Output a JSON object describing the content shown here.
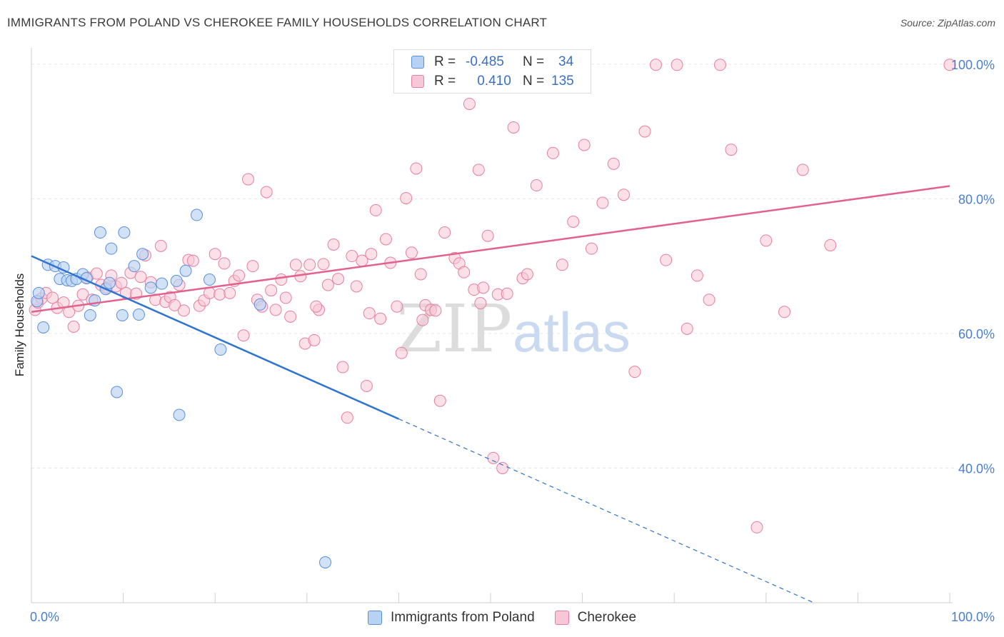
{
  "header": {
    "title": "IMMIGRANTS FROM POLAND VS CHEROKEE FAMILY HOUSEHOLDS CORRELATION CHART",
    "source": "Source: ZipAtlas.com"
  },
  "watermark": {
    "zip": "ZIP",
    "atlas": "atlas"
  },
  "legend": {
    "rows": [
      {
        "r_label": "R =",
        "r_value": "-0.485",
        "n_label": "N =",
        "n_value": "34"
      },
      {
        "r_label": "R =",
        "r_value": "0.410",
        "n_label": "N =",
        "n_value": "135"
      }
    ]
  },
  "chart_data": {
    "type": "scatter",
    "title": "IMMIGRANTS FROM POLAND VS CHEROKEE FAMILY HOUSEHOLDS CORRELATION CHART",
    "xlabel": "",
    "ylabel": "Family Households",
    "xlim": [
      0,
      100
    ],
    "ylim": [
      20,
      102
    ],
    "x_tick_labels": [
      "0.0%",
      "100.0%"
    ],
    "y_ticks": [
      40,
      60,
      80,
      100
    ],
    "y_tick_labels": [
      "40.0%",
      "60.0%",
      "80.0%",
      "100.0%"
    ],
    "grid": true,
    "legend_position": "top-center",
    "colors": {
      "poland_fill": "#b8d2f3",
      "poland_stroke": "#5b8fd8",
      "poland_line": "#2f74d0",
      "cherokee_fill": "#f8c6d6",
      "cherokee_stroke": "#e77ea0",
      "cherokee_line": "#e2628d",
      "tick_label": "#4a7fd0"
    },
    "series": [
      {
        "name": "Immigrants from Poland",
        "r": -0.485,
        "n": 34,
        "trend": {
          "x0": 0,
          "y0": 71.5,
          "x1": 40.0,
          "y1": 47.3,
          "dash_to_x": 85.2,
          "dash_to_y": 20.0
        },
        "points": [
          [
            0.6,
            64.8
          ],
          [
            0.8,
            66.0
          ],
          [
            1.3,
            60.9
          ],
          [
            1.8,
            70.2
          ],
          [
            2.6,
            70.0
          ],
          [
            3.1,
            68.1
          ],
          [
            3.5,
            69.8
          ],
          [
            3.9,
            67.9
          ],
          [
            4.4,
            67.8
          ],
          [
            4.9,
            68.1
          ],
          [
            5.6,
            68.8
          ],
          [
            6.0,
            68.2
          ],
          [
            6.4,
            62.7
          ],
          [
            6.9,
            64.9
          ],
          [
            7.5,
            75.0
          ],
          [
            8.1,
            66.6
          ],
          [
            8.5,
            67.5
          ],
          [
            8.7,
            72.6
          ],
          [
            9.3,
            51.3
          ],
          [
            9.9,
            62.7
          ],
          [
            10.1,
            75.0
          ],
          [
            11.2,
            70.0
          ],
          [
            11.7,
            62.8
          ],
          [
            12.1,
            71.8
          ],
          [
            13.0,
            66.8
          ],
          [
            14.2,
            67.4
          ],
          [
            15.8,
            67.8
          ],
          [
            16.1,
            47.9
          ],
          [
            16.8,
            69.3
          ],
          [
            18.0,
            77.6
          ],
          [
            19.4,
            68.0
          ],
          [
            20.6,
            57.6
          ],
          [
            24.9,
            64.3
          ],
          [
            32.0,
            26.0
          ]
        ]
      },
      {
        "name": "Cherokee",
        "r": 0.41,
        "n": 135,
        "trend": {
          "x0": 0,
          "y0": 63.2,
          "x1": 100,
          "y1": 81.9
        },
        "points": [
          [
            0.4,
            63.5
          ],
          [
            0.7,
            64.6
          ],
          [
            1.1,
            65.2
          ],
          [
            1.6,
            66.0
          ],
          [
            2.3,
            65.3
          ],
          [
            2.8,
            63.8
          ],
          [
            3.5,
            64.6
          ],
          [
            4.1,
            63.2
          ],
          [
            4.6,
            61.0
          ],
          [
            5.1,
            64.1
          ],
          [
            5.6,
            65.8
          ],
          [
            6.1,
            68.3
          ],
          [
            6.6,
            65.0
          ],
          [
            7.1,
            68.9
          ],
          [
            7.6,
            67.2
          ],
          [
            8.2,
            66.8
          ],
          [
            8.7,
            68.6
          ],
          [
            9.2,
            67.0
          ],
          [
            9.8,
            67.5
          ],
          [
            10.3,
            66.0
          ],
          [
            10.8,
            69.0
          ],
          [
            11.4,
            65.9
          ],
          [
            11.9,
            68.4
          ],
          [
            12.4,
            71.6
          ],
          [
            13.0,
            67.6
          ],
          [
            13.5,
            65.0
          ],
          [
            14.1,
            73.0
          ],
          [
            14.6,
            64.7
          ],
          [
            15.1,
            65.4
          ],
          [
            15.6,
            64.2
          ],
          [
            16.1,
            67.2
          ],
          [
            16.6,
            63.4
          ],
          [
            17.1,
            70.9
          ],
          [
            17.6,
            70.8
          ],
          [
            18.3,
            64.1
          ],
          [
            18.8,
            64.9
          ],
          [
            19.4,
            66.0
          ],
          [
            20.0,
            71.8
          ],
          [
            20.5,
            65.8
          ],
          [
            21.0,
            70.4
          ],
          [
            21.6,
            66.0
          ],
          [
            22.1,
            67.8
          ],
          [
            22.6,
            68.6
          ],
          [
            23.1,
            59.7
          ],
          [
            23.6,
            82.9
          ],
          [
            24.1,
            70.0
          ],
          [
            24.6,
            65.0
          ],
          [
            25.1,
            64.0
          ],
          [
            25.6,
            81.0
          ],
          [
            26.1,
            66.4
          ],
          [
            26.6,
            63.5
          ],
          [
            27.2,
            68.0
          ],
          [
            27.7,
            65.3
          ],
          [
            28.2,
            62.5
          ],
          [
            28.8,
            70.2
          ],
          [
            29.3,
            68.5
          ],
          [
            29.8,
            58.5
          ],
          [
            30.3,
            70.2
          ],
          [
            30.8,
            59.0
          ],
          [
            31.3,
            63.5
          ],
          [
            31.8,
            70.3
          ],
          [
            32.3,
            67.2
          ],
          [
            32.9,
            73.2
          ],
          [
            33.4,
            68.1
          ],
          [
            33.9,
            55.0
          ],
          [
            34.4,
            47.5
          ],
          [
            34.9,
            71.5
          ],
          [
            35.4,
            67.0
          ],
          [
            36.0,
            70.8
          ],
          [
            36.5,
            52.2
          ],
          [
            37.0,
            71.8
          ],
          [
            37.5,
            78.3
          ],
          [
            38.0,
            62.2
          ],
          [
            38.6,
            74.0
          ],
          [
            39.1,
            70.5
          ],
          [
            39.8,
            64.0
          ],
          [
            40.3,
            57.1
          ],
          [
            40.8,
            80.1
          ],
          [
            41.4,
            72.0
          ],
          [
            41.9,
            84.5
          ],
          [
            42.4,
            68.8
          ],
          [
            42.9,
            64.2
          ],
          [
            43.5,
            63.5
          ],
          [
            44.0,
            63.4
          ],
          [
            44.5,
            50.0
          ],
          [
            45.0,
            75.0
          ],
          [
            45.6,
            99.8
          ],
          [
            46.1,
            71.2
          ],
          [
            46.6,
            70.4
          ],
          [
            47.1,
            69.1
          ],
          [
            47.7,
            94.1
          ],
          [
            48.2,
            66.5
          ],
          [
            48.7,
            84.3
          ],
          [
            49.2,
            66.8
          ],
          [
            49.7,
            74.5
          ],
          [
            50.3,
            41.5
          ],
          [
            50.8,
            65.8
          ],
          [
            51.3,
            40.0
          ],
          [
            51.8,
            65.9
          ],
          [
            52.5,
            90.6
          ],
          [
            53.5,
            68.2
          ],
          [
            54.0,
            68.8
          ],
          [
            55.0,
            82.0
          ],
          [
            55.7,
            99.8
          ],
          [
            56.8,
            86.8
          ],
          [
            57.8,
            70.2
          ],
          [
            59.0,
            76.6
          ],
          [
            60.2,
            88.0
          ],
          [
            61.0,
            72.6
          ],
          [
            62.2,
            79.4
          ],
          [
            63.4,
            85.2
          ],
          [
            64.5,
            80.6
          ],
          [
            65.7,
            54.3
          ],
          [
            66.8,
            90.0
          ],
          [
            68.0,
            99.9
          ],
          [
            69.1,
            70.9
          ],
          [
            70.3,
            99.9
          ],
          [
            71.4,
            60.7
          ],
          [
            72.5,
            68.6
          ],
          [
            73.8,
            65.0
          ],
          [
            75.0,
            99.9
          ],
          [
            76.2,
            87.3
          ],
          [
            79.0,
            31.2
          ],
          [
            80.0,
            73.8
          ],
          [
            82.0,
            63.2
          ],
          [
            84.0,
            84.3
          ],
          [
            87.0,
            73.1
          ],
          [
            100.0,
            99.9
          ],
          [
            31.0,
            64.0
          ],
          [
            36.8,
            63.0
          ],
          [
            42.6,
            62.0
          ],
          [
            48.9,
            64.5
          ]
        ]
      }
    ]
  }
}
